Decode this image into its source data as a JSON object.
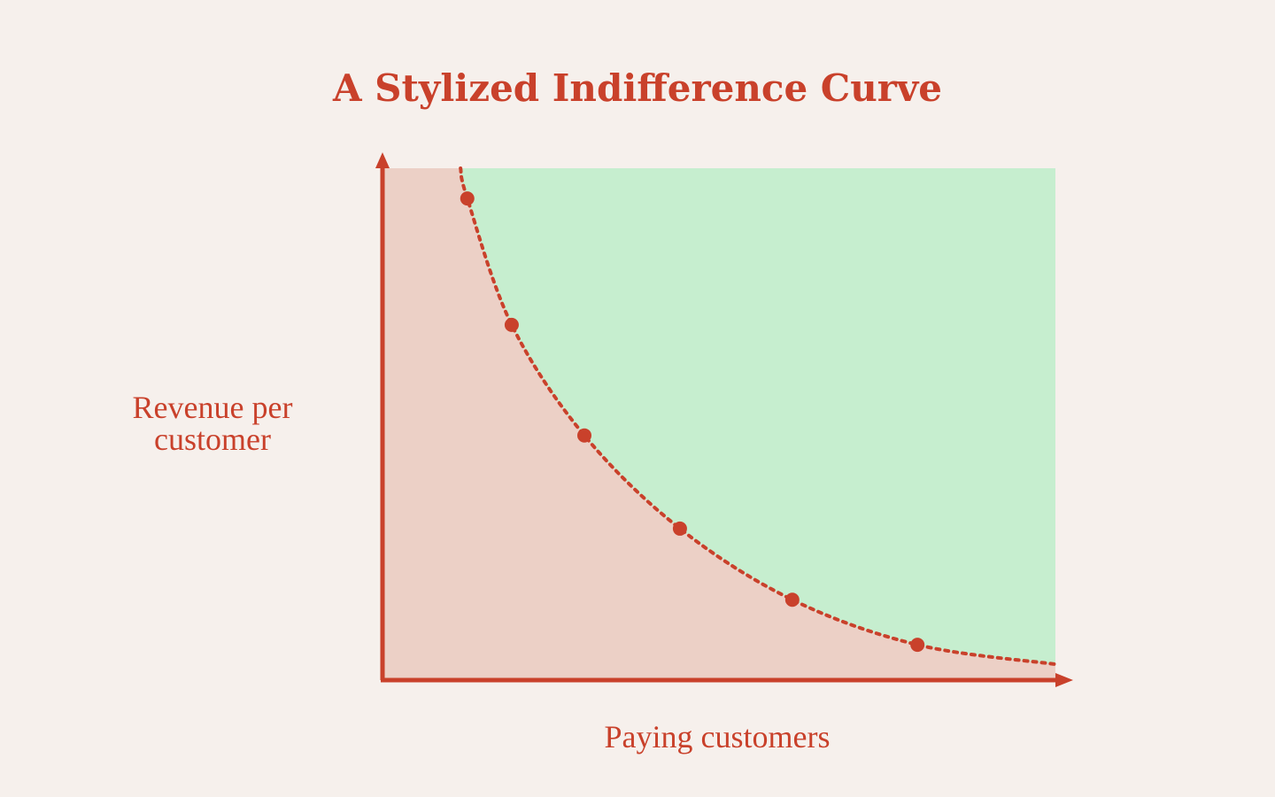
{
  "chart_data": {
    "type": "line",
    "title": "A Stylized Indifference Curve",
    "xlabel": "Paying customers",
    "ylabel": "Revenue per customer",
    "xlim": [
      0,
      100
    ],
    "ylim": [
      0,
      100
    ],
    "below_color": "#ecd0c6",
    "above_color": "#c6eecf",
    "series": [
      {
        "color": "#c9412b",
        "x": [
          11.6,
          12.6,
          19.2,
          30.0,
          44.2,
          60.9,
          79.5,
          100
        ],
        "values": [
          100,
          94.1,
          69.4,
          47.8,
          29.6,
          15.7,
          6.9,
          3.1
        ],
        "markers": [
          false,
          true,
          true,
          true,
          true,
          true,
          true,
          false
        ]
      }
    ]
  }
}
